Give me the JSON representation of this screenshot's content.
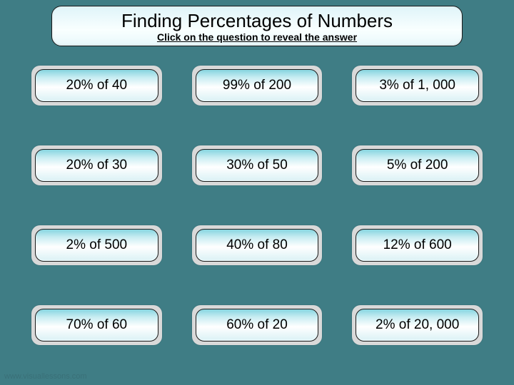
{
  "header": {
    "title": "Finding Percentages of Numbers",
    "subtitle": "Click on the question to reveal the answer"
  },
  "grid": {
    "rows": 4,
    "cols": 3,
    "questions": [
      "20% of 40",
      "99% of 200",
      "3% of 1, 000",
      "20% of 30",
      "30% of 50",
      "5% of 200",
      "2% of 500",
      "40% of 80",
      "12% of 600",
      "70% of 60",
      "60% of 20",
      "2% of 20, 000"
    ]
  },
  "footer": {
    "text": "www.visuallessons.com"
  },
  "colors": {
    "background": "#3f7d85",
    "tile_outer": "#d9d9d9",
    "tile_border": "#1a1a1a",
    "tile_gradient_top": "#86d5e0",
    "tile_gradient_bottom": "#d9f1f5",
    "footer_text": "#3a7078"
  }
}
